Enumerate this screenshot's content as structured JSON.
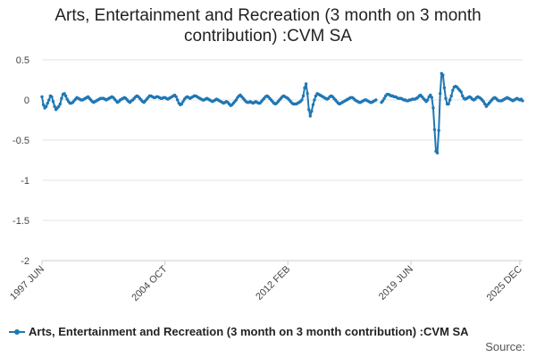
{
  "chart_data": {
    "type": "line",
    "title": "Arts, Entertainment and Recreation (3 month on 3 month contribution) :CVM SA",
    "title_lines": [
      "Arts, Entertainment and Recreation (3 month on 3 month",
      "contribution) :CVM SA"
    ],
    "xlabel": "",
    "ylabel": "",
    "ylim": [
      -2,
      0.5
    ],
    "yticks": [
      0.5,
      0,
      -0.5,
      -1,
      -1.5,
      -2
    ],
    "ytick_labels": [
      "0.5",
      "0",
      "-0.5",
      "-1",
      "-1.5",
      "-2"
    ],
    "xtick_labels": [
      "1997 JUN",
      "2004 OCT",
      "2012 FEB",
      "2019 JUN",
      "2025 DEC"
    ],
    "xtick_index": [
      0,
      88,
      176,
      264,
      342
    ],
    "grid": true,
    "legend_position": "bottom",
    "series": [
      {
        "name": "Arts, Entertainment and Recreation (3 month on 3 month contribution) :CVM SA",
        "color": "#1f77b4",
        "values": [
          0.04,
          -0.06,
          -0.1,
          -0.08,
          -0.04,
          0.0,
          0.05,
          0.04,
          -0.02,
          -0.08,
          -0.12,
          -0.1,
          -0.08,
          -0.05,
          0.02,
          0.07,
          0.08,
          0.05,
          0.01,
          -0.02,
          -0.04,
          -0.04,
          -0.03,
          -0.01,
          0.01,
          0.03,
          0.02,
          0.01,
          0.0,
          0.0,
          0.01,
          0.02,
          0.03,
          0.04,
          0.02,
          0.0,
          -0.02,
          -0.03,
          -0.02,
          -0.01,
          0.0,
          0.01,
          0.02,
          0.02,
          0.02,
          0.01,
          0.0,
          0.01,
          0.02,
          0.03,
          0.04,
          0.03,
          0.01,
          -0.01,
          -0.03,
          -0.02,
          0.0,
          0.01,
          0.02,
          0.03,
          0.02,
          0.0,
          -0.02,
          -0.03,
          -0.01,
          0.0,
          0.02,
          0.04,
          0.05,
          0.04,
          0.02,
          0.0,
          -0.02,
          -0.03,
          -0.01,
          0.01,
          0.03,
          0.05,
          0.05,
          0.04,
          0.03,
          0.03,
          0.04,
          0.04,
          0.03,
          0.02,
          0.02,
          0.03,
          0.03,
          0.02,
          0.01,
          0.02,
          0.03,
          0.04,
          0.05,
          0.06,
          0.04,
          0.0,
          -0.04,
          -0.06,
          -0.05,
          -0.02,
          0.01,
          0.03,
          0.04,
          0.03,
          0.02,
          0.03,
          0.04,
          0.05,
          0.05,
          0.04,
          0.03,
          0.02,
          0.01,
          0.0,
          0.0,
          0.01,
          0.02,
          0.01,
          0.0,
          -0.01,
          -0.02,
          -0.01,
          0.0,
          0.01,
          0.0,
          -0.01,
          -0.02,
          -0.03,
          -0.04,
          -0.03,
          -0.02,
          -0.03,
          -0.05,
          -0.07,
          -0.06,
          -0.04,
          -0.02,
          0.0,
          0.03,
          0.05,
          0.06,
          0.04,
          0.02,
          0.0,
          -0.02,
          -0.03,
          -0.03,
          -0.02,
          -0.03,
          -0.04,
          -0.03,
          -0.02,
          -0.03,
          -0.04,
          -0.04,
          -0.02,
          0.0,
          0.02,
          0.04,
          0.05,
          0.04,
          0.02,
          0.0,
          -0.02,
          -0.04,
          -0.05,
          -0.04,
          -0.02,
          0.0,
          0.02,
          0.04,
          0.05,
          0.04,
          0.03,
          0.02,
          0.0,
          -0.02,
          -0.04,
          -0.05,
          -0.05,
          -0.05,
          -0.04,
          -0.03,
          -0.02,
          0.0,
          0.05,
          0.15,
          0.2,
          0.08,
          -0.12,
          -0.2,
          -0.14,
          -0.06,
          0.0,
          0.05,
          0.08,
          0.07,
          0.06,
          0.05,
          0.04,
          0.03,
          0.02,
          0.01,
          0.02,
          0.04,
          0.05,
          0.04,
          0.02,
          0.0,
          -0.02,
          -0.04,
          -0.05,
          -0.04,
          -0.03,
          -0.02,
          -0.01,
          0.0,
          0.01,
          0.02,
          0.03,
          0.03,
          0.02,
          0.0,
          -0.01,
          -0.02,
          -0.03,
          -0.03,
          -0.02,
          -0.01,
          0.0,
          0.0,
          -0.01,
          -0.02,
          -0.03,
          -0.03,
          -0.02,
          -0.01,
          0.0,
          null,
          null,
          null,
          -0.03,
          -0.01,
          0.02,
          0.05,
          0.07,
          0.07,
          0.06,
          0.05,
          0.05,
          0.04,
          0.04,
          0.03,
          0.02,
          0.02,
          0.02,
          0.01,
          0.0,
          0.0,
          -0.01,
          -0.01,
          0.0,
          0.0,
          0.01,
          0.01,
          0.01,
          0.02,
          0.03,
          0.05,
          0.06,
          0.04,
          0.02,
          0.0,
          -0.02,
          0.0,
          0.04,
          0.06,
          0.03,
          -0.1,
          -0.37,
          -0.64,
          -0.66,
          -0.38,
          0.08,
          0.33,
          0.31,
          0.15,
          0.02,
          -0.05,
          -0.05,
          0.0,
          0.05,
          0.12,
          0.16,
          0.17,
          0.16,
          0.14,
          0.12,
          0.1,
          0.05,
          0.02,
          0.01,
          0.02,
          0.03,
          0.04,
          0.03,
          0.01,
          0.0,
          0.01,
          0.03,
          0.04,
          0.03,
          0.02,
          0.0,
          -0.02,
          -0.05,
          -0.08,
          -0.06,
          -0.04,
          -0.02,
          0.0,
          0.02,
          0.03,
          0.02,
          0.0,
          -0.01,
          -0.01,
          -0.01,
          0.0,
          0.01,
          0.02,
          0.03,
          0.02,
          0.01,
          0.0,
          -0.01,
          0.0,
          0.01,
          0.02,
          0.01,
          0.0,
          0.01,
          -0.01
        ]
      }
    ]
  },
  "legend": {
    "label": "Arts, Entertainment and Recreation (3 month on 3 month contribution) :CVM SA"
  },
  "source_label": "Source:"
}
